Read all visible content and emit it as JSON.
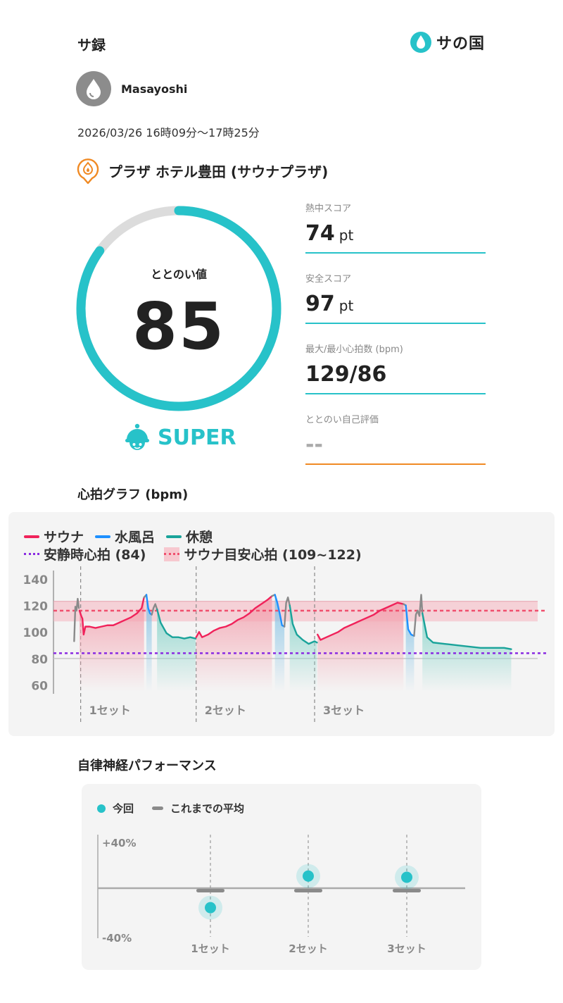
{
  "header": {
    "app_title": "サ録",
    "brand_name": "サの国",
    "brand_icon": "water-drop-icon"
  },
  "user": {
    "name": "Masayoshi",
    "avatar_icon": "water-drop-icon"
  },
  "session": {
    "time_range": "2026/03/26 16時09分〜17時25分"
  },
  "facility": {
    "icon": "location-flame-pin-icon",
    "name": "プラザ ホテル豊田 (サウナプラザ)"
  },
  "totonoi": {
    "label": "ととのい値",
    "value": "85",
    "score_fraction": 0.85,
    "level": "SUPER",
    "level_icon": "helmet-mascot-icon"
  },
  "metrics": [
    {
      "label": "熱中スコア",
      "value": "74",
      "unit": "pt"
    },
    {
      "label": "安全スコア",
      "value": "97",
      "unit": "pt"
    },
    {
      "label": "最大/最小心拍数 (bpm)",
      "value": "129/86",
      "unit": ""
    },
    {
      "label": "ととのい自己評価",
      "value": "--",
      "unit": ""
    }
  ],
  "colors": {
    "accent": "#27c2c9",
    "sauna": "#f0225a",
    "cold_bath": "#1e90ff",
    "rest": "#1aa39a",
    "resting_hr_line": "#8a2be2",
    "target_hr_line": "#f0506e",
    "self_rating_line": "#f08a24",
    "past_average": "#8a8a8a"
  },
  "heart_rate": {
    "section_title": "心拍グラフ (bpm)",
    "legend": {
      "sauna": "サウナ",
      "cold_bath": "水風呂",
      "rest": "休憩",
      "resting": "安静時心拍 (84)",
      "target": "サウナ目安心拍 (109~122)"
    }
  },
  "chart_data": [
    {
      "type": "line",
      "title": "心拍グラフ (bpm)",
      "ylabel": "",
      "ylim": [
        55,
        142
      ],
      "yticks": [
        "140",
        "120",
        "100",
        "80",
        "60"
      ],
      "xlim": [
        0,
        75
      ],
      "set_labels": [
        "1セット",
        "2セット",
        "3セット"
      ],
      "set_starts": [
        0.5,
        20,
        40
      ],
      "resting_hr": 84,
      "target_band": [
        109,
        122
      ],
      "target_line": 116,
      "segments": [
        {
          "phase": "pre",
          "points": [
            [
              -0.6,
              93
            ],
            [
              -0.4,
              119
            ],
            [
              -0.2,
              116
            ],
            [
              0.0,
              125
            ],
            [
              0.2,
              118
            ]
          ]
        },
        {
          "phase": "sauna",
          "points": [
            [
              0.3,
              116
            ],
            [
              0.6,
              112
            ],
            [
              0.8,
              110
            ],
            [
              1.0,
              98
            ],
            [
              1.3,
              104
            ],
            [
              2,
              104
            ],
            [
              3,
              103
            ],
            [
              4,
              104
            ],
            [
              5,
              105
            ],
            [
              6,
              105
            ],
            [
              7,
              107
            ],
            [
              8,
              109
            ],
            [
              9,
              111
            ],
            [
              10,
              114
            ],
            [
              10.8,
              118
            ],
            [
              11.2,
              126
            ]
          ]
        },
        {
          "phase": "transition",
          "points": [
            [
              11.2,
              126
            ],
            [
              11.6,
              128
            ]
          ]
        },
        {
          "phase": "cold",
          "points": [
            [
              11.6,
              128
            ],
            [
              11.9,
              118
            ],
            [
              12.2,
              114
            ],
            [
              12.5,
              113
            ]
          ]
        },
        {
          "phase": "transition",
          "points": [
            [
              12.5,
              113
            ],
            [
              12.8,
              118
            ],
            [
              13.1,
              121
            ],
            [
              13.4,
              117
            ]
          ]
        },
        {
          "phase": "rest",
          "points": [
            [
              13.4,
              117
            ],
            [
              14,
              107
            ],
            [
              15,
              99
            ],
            [
              16,
              96
            ],
            [
              17,
              96
            ],
            [
              18,
              95
            ],
            [
              19,
              96
            ],
            [
              19.9,
              95
            ]
          ]
        },
        {
          "phase": "sauna",
          "points": [
            [
              20,
              96
            ],
            [
              20.5,
              100
            ],
            [
              21,
              96
            ],
            [
              22,
              98
            ],
            [
              23,
              101
            ],
            [
              24,
              103
            ],
            [
              25,
              104
            ],
            [
              26,
              106
            ],
            [
              27,
              109
            ],
            [
              28,
              111
            ],
            [
              29,
              114
            ],
            [
              30,
              118
            ],
            [
              31,
              121
            ],
            [
              32,
              124
            ],
            [
              32.8,
              127
            ]
          ]
        },
        {
          "phase": "transition",
          "points": [
            [
              32.8,
              127
            ],
            [
              33.3,
              128
            ]
          ]
        },
        {
          "phase": "cold",
          "points": [
            [
              33.3,
              128
            ],
            [
              33.7,
              122
            ],
            [
              34.1,
              114
            ],
            [
              34.5,
              105
            ],
            [
              34.9,
              104
            ]
          ]
        },
        {
          "phase": "transition",
          "points": [
            [
              34.9,
              104
            ],
            [
              35.2,
              122
            ],
            [
              35.5,
              126
            ],
            [
              35.8,
              120
            ]
          ]
        },
        {
          "phase": "rest",
          "points": [
            [
              35.8,
              120
            ],
            [
              36.3,
              106
            ],
            [
              37,
              98
            ],
            [
              38,
              94
            ],
            [
              39,
              91
            ],
            [
              40,
              93
            ],
            [
              40.4,
              92
            ]
          ]
        },
        {
          "phase": "sauna",
          "points": [
            [
              40.5,
              98
            ],
            [
              41,
              94
            ],
            [
              42,
              96
            ],
            [
              43,
              98
            ],
            [
              44,
              100
            ],
            [
              45,
              103
            ],
            [
              46,
              105
            ],
            [
              47,
              107
            ],
            [
              48,
              109
            ],
            [
              49,
              111
            ],
            [
              50,
              113
            ],
            [
              51,
              116
            ],
            [
              52,
              118
            ],
            [
              53,
              120
            ],
            [
              54,
              122
            ],
            [
              55,
              121
            ]
          ]
        },
        {
          "phase": "transition",
          "points": [
            [
              55,
              121
            ],
            [
              55.4,
              120
            ]
          ]
        },
        {
          "phase": "cold",
          "points": [
            [
              55.4,
              120
            ],
            [
              55.8,
              102
            ],
            [
              56.3,
              98
            ],
            [
              56.8,
              97
            ]
          ]
        },
        {
          "phase": "transition",
          "points": [
            [
              56.8,
              97
            ],
            [
              57.1,
              113
            ],
            [
              57.4,
              116
            ],
            [
              57.7,
              112
            ],
            [
              58.0,
              128
            ],
            [
              58.2,
              114
            ]
          ]
        },
        {
          "phase": "rest",
          "points": [
            [
              58.2,
              114
            ],
            [
              59,
              96
            ],
            [
              60,
              92
            ],
            [
              62,
              91
            ],
            [
              64,
              90
            ],
            [
              66,
              89
            ],
            [
              68,
              88
            ],
            [
              70,
              88
            ],
            [
              72,
              88
            ],
            [
              73.2,
              87
            ]
          ]
        }
      ],
      "phase_colors": {
        "pre": "#8a8a8a",
        "transition": "#8a8a8a",
        "sauna": "#f0225a",
        "cold": "#1e90ff",
        "rest": "#1aa39a"
      }
    },
    {
      "type": "scatter",
      "title": "自律神経パフォーマンス",
      "ylim": [
        -40,
        40
      ],
      "yticks": [
        "+40%",
        "-40%"
      ],
      "categories": [
        "1セット",
        "2セット",
        "3セット"
      ],
      "series": [
        {
          "name": "今回",
          "values": [
            -16,
            10,
            9
          ]
        },
        {
          "name": "これまでの平均",
          "values": [
            -2,
            -2,
            -2
          ]
        }
      ]
    }
  ],
  "ans": {
    "section_title": "自律神経パフォーマンス",
    "legend_current": "今回",
    "legend_average": "これまでの平均"
  }
}
